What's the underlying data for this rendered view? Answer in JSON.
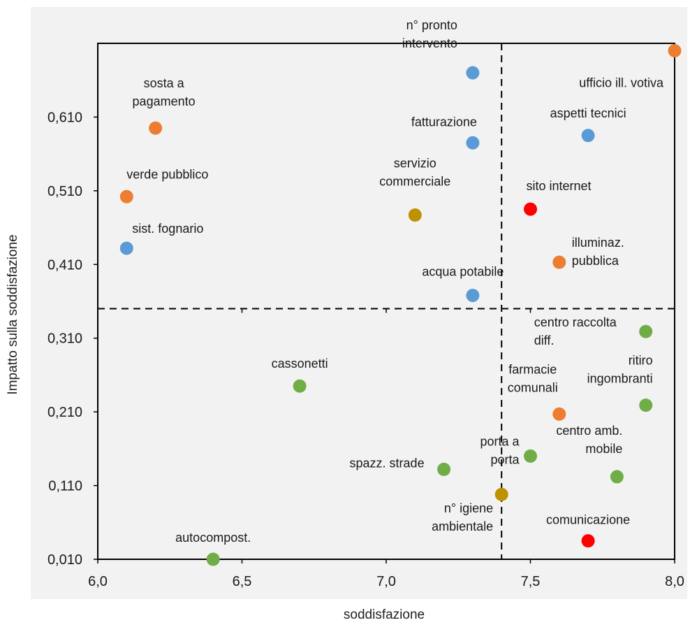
{
  "chart_data": {
    "type": "scatter",
    "title": "",
    "xlabel": "soddisfazione",
    "ylabel": "Impatto sulla soddisfazione",
    "xlim": [
      6.0,
      8.0
    ],
    "ylim": [
      0.01,
      0.71
    ],
    "x_ticks": [
      "6,0",
      "6,5",
      "7,0",
      "7,5",
      "8,0"
    ],
    "x_tick_values": [
      6.0,
      6.5,
      7.0,
      7.5,
      8.0
    ],
    "y_ticks": [
      "0,010",
      "0,110",
      "0,210",
      "0,310",
      "0,410",
      "0,510",
      "0,610"
    ],
    "y_tick_values": [
      0.01,
      0.11,
      0.21,
      0.31,
      0.41,
      0.51,
      0.61
    ],
    "reference_lines": {
      "x": 7.4,
      "y": 0.35
    },
    "grid": false,
    "colors": {
      "blue": "#5b9bd5",
      "orange": "#ed7d31",
      "gold": "#bf9000",
      "green": "#70ad47",
      "red": "#ff0000"
    },
    "points": [
      {
        "label": "n° pronto intervento",
        "lines": [
          "n° pronto",
          "intervento"
        ],
        "x": 7.3,
        "y": 0.67,
        "color": "blue"
      },
      {
        "label": "fatturazione",
        "lines": [
          "fatturazione"
        ],
        "x": 7.3,
        "y": 0.575,
        "color": "blue"
      },
      {
        "label": "aspetti tecnici",
        "lines": [
          "aspetti tecnici"
        ],
        "x": 7.7,
        "y": 0.585,
        "color": "blue"
      },
      {
        "label": "ufficio ill. votiva",
        "lines": [
          "ufficio ill. votiva"
        ],
        "x": 8.0,
        "y": 0.7,
        "color": "orange"
      },
      {
        "label": "sosta a pagamento",
        "lines": [
          "sosta a",
          "pagamento"
        ],
        "x": 6.2,
        "y": 0.595,
        "color": "orange"
      },
      {
        "label": "verde pubblico",
        "lines": [
          "verde pubblico"
        ],
        "x": 6.1,
        "y": 0.502,
        "color": "orange"
      },
      {
        "label": "sist. fognario",
        "lines": [
          "sist. fognario"
        ],
        "x": 6.1,
        "y": 0.432,
        "color": "blue"
      },
      {
        "label": "servizio commerciale",
        "lines": [
          "servizio",
          "commerciale"
        ],
        "x": 7.1,
        "y": 0.477,
        "color": "gold"
      },
      {
        "label": "sito internet",
        "lines": [
          "sito internet"
        ],
        "x": 7.5,
        "y": 0.485,
        "color": "red"
      },
      {
        "label": "illuminaz. pubblica",
        "lines": [
          "illuminaz.",
          "pubblica"
        ],
        "x": 7.6,
        "y": 0.413,
        "color": "orange"
      },
      {
        "label": "acqua potabile",
        "lines": [
          "acqua potabile"
        ],
        "x": 7.3,
        "y": 0.368,
        "color": "blue"
      },
      {
        "label": "centro raccolta diff.",
        "lines": [
          "centro raccolta",
          "diff."
        ],
        "x": 7.9,
        "y": 0.319,
        "color": "green"
      },
      {
        "label": "cassonetti",
        "lines": [
          "cassonetti"
        ],
        "x": 6.7,
        "y": 0.245,
        "color": "green"
      },
      {
        "label": "ritiro ingombranti",
        "lines": [
          "ritiro",
          "ingombranti"
        ],
        "x": 7.9,
        "y": 0.219,
        "color": "green"
      },
      {
        "label": "farmacie comunali",
        "lines": [
          "farmacie",
          "comunali"
        ],
        "x": 7.6,
        "y": 0.207,
        "color": "orange"
      },
      {
        "label": "centro amb. mobile",
        "lines": [
          "centro amb.",
          "mobile"
        ],
        "x": 7.8,
        "y": 0.122,
        "color": "green"
      },
      {
        "label": "porta a porta",
        "lines": [
          "porta a",
          "porta"
        ],
        "x": 7.5,
        "y": 0.15,
        "color": "green"
      },
      {
        "label": "spazz. strade",
        "lines": [
          "spazz. strade"
        ],
        "x": 7.2,
        "y": 0.132,
        "color": "green"
      },
      {
        "label": "n° igiene ambientale",
        "lines": [
          "n° igiene",
          "ambientale"
        ],
        "x": 7.4,
        "y": 0.098,
        "color": "gold"
      },
      {
        "label": "comunicazione",
        "lines": [
          "comunicazione"
        ],
        "x": 7.7,
        "y": 0.035,
        "color": "red"
      },
      {
        "label": "autocompost.",
        "lines": [
          "autocompost."
        ],
        "x": 6.4,
        "y": 0.01,
        "color": "green"
      }
    ]
  }
}
